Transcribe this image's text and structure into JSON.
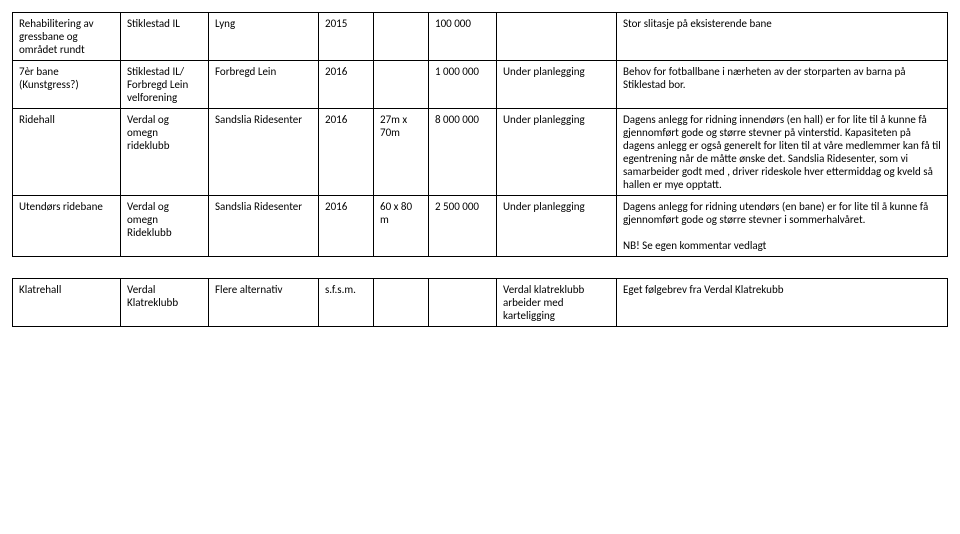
{
  "rows": [
    {
      "c1": "Rehabilitering av gressbane og området rundt",
      "c2": "Stiklestad IL",
      "c3": "Lyng",
      "c4": "2015",
      "c5": "",
      "c6": "100 000",
      "c7": "",
      "c8": "Stor slitasje på eksisterende bane"
    },
    {
      "c1": "7èr bane (Kunstgress?)",
      "c2": "Stiklestad IL/ Forbregd Lein velforening",
      "c3": "Forbregd Lein",
      "c4": "2016",
      "c5": "",
      "c6": "1 000 000",
      "c7": "Under planlegging",
      "c8": "Behov for fotballbane i nærheten av der storparten av barna på Stiklestad bor."
    },
    {
      "c1": "Ridehall",
      "c2": "Verdal og omegn rideklubb",
      "c3": "Sandslia Ridesenter",
      "c4": "2016",
      "c5": "27m x 70m",
      "c6": "8 000 000",
      "c7": "Under planlegging",
      "c8": "Dagens anlegg for ridning innendørs (en hall) er for lite til å kunne få gjennomført gode og større stevner på vinterstid. Kapasiteten på dagens anlegg er også generelt for liten til at våre medlemmer kan få til egentrening når de måtte ønske det. Sandslia Ridesenter, som vi samarbeider godt med , driver rideskole hver ettermiddag og kveld så hallen er mye opptatt."
    },
    {
      "c1": "Utendørs ridebane",
      "c2": "Verdal og omegn Rideklubb",
      "c3": "Sandslia Ridesenter",
      "c4": "2016",
      "c5": "60 x 80 m",
      "c6": "2 500 000",
      "c7": "Under planlegging",
      "c8": "Dagens anlegg for ridning utendørs (en bane) er for lite til å kunne få gjennomført gode og større stevner i sommerhalvåret.\n\nNB! Se egen kommentar vedlagt"
    },
    {
      "c1": "Klatrehall",
      "c2": "Verdal Klatreklubb",
      "c3": "Flere alternativ",
      "c4": "s.f.s.m.",
      "c5": "",
      "c6": "",
      "c7": "Verdal klatreklubb arbeider med karteligging",
      "c8": "Eget følgebrev fra Verdal Klatrekubb"
    }
  ],
  "style": {
    "font_size": 11,
    "border_color": "#000000",
    "background": "#ffffff",
    "text_color": "#000000"
  }
}
